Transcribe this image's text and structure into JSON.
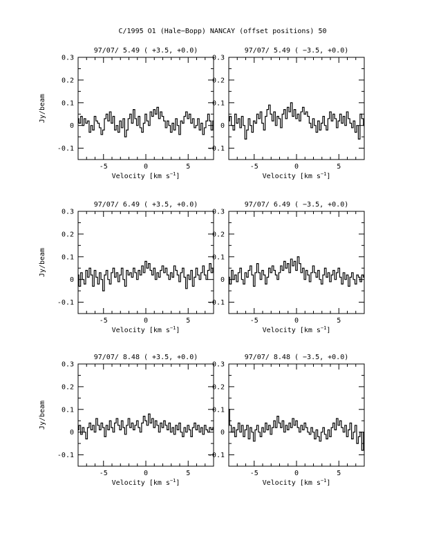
{
  "page_title": "C/1995 O1 (Hale−Bopp)   NANCAY     (offset positions)   50",
  "chart_data": [
    {
      "type": "line",
      "title": "97/07/ 5.49  ( +3.5, +0.0)",
      "xlabel": "Velocity [km s",
      "xlabel_sup": "−1",
      "xlabel_close": "]",
      "ylabel": "Jy/beam",
      "xlim": [
        -8,
        8
      ],
      "ylim": [
        -0.15,
        0.3
      ],
      "xticks": [
        "-5",
        "0",
        "5"
      ],
      "yticks": [
        "-0.1",
        "0",
        "0.1",
        "0.2",
        "0.3"
      ],
      "x_start": -8,
      "x_step": 0.2,
      "values": [
        0.03,
        0.01,
        0.04,
        0.0,
        0.03,
        0.01,
        0.02,
        -0.03,
        0.0,
        -0.02,
        0.04,
        0.02,
        0.01,
        -0.01,
        -0.04,
        -0.02,
        0.03,
        0.05,
        0.02,
        0.06,
        0.01,
        0.04,
        -0.02,
        0.0,
        -0.03,
        0.02,
        -0.01,
        0.03,
        -0.05,
        -0.02,
        0.03,
        0.05,
        0.01,
        0.07,
        0.03,
        0.0,
        0.04,
        -0.01,
        -0.03,
        0.01,
        0.05,
        0.02,
        0.0,
        0.06,
        0.04,
        0.07,
        0.05,
        0.08,
        0.03,
        0.06,
        0.04,
        0.02,
        -0.01,
        0.02,
        0.0,
        -0.03,
        0.01,
        -0.02,
        0.03,
        0.0,
        -0.04,
        0.02,
        0.01,
        0.04,
        0.06,
        0.03,
        0.05,
        0.01,
        0.03,
        -0.01,
        0.0,
        0.03,
        -0.02,
        0.01,
        -0.04,
        -0.01,
        0.02,
        0.05,
        0.02,
        -0.02,
        0.02
      ]
    },
    {
      "type": "line",
      "title": "97/07/ 5.49  ( −3.5, +0.0)",
      "xlabel": "Velocity [km s",
      "xlabel_sup": "−1",
      "xlabel_close": "]",
      "ylabel": "",
      "xlim": [
        -8,
        8
      ],
      "ylim": [
        -0.15,
        0.3
      ],
      "xticks": [
        "-5",
        "0",
        "5"
      ],
      "yticks": [
        "-0.1",
        "0",
        "0.1",
        "0.2",
        "0.3"
      ],
      "x_start": -8,
      "x_step": 0.2,
      "values": [
        0.02,
        0.04,
        0.0,
        -0.02,
        0.05,
        0.01,
        0.03,
        -0.01,
        0.04,
        0.0,
        -0.06,
        -0.02,
        0.03,
        0.0,
        -0.03,
        0.02,
        0.01,
        0.05,
        0.03,
        0.06,
        0.01,
        -0.02,
        0.04,
        0.07,
        0.09,
        0.05,
        0.02,
        0.06,
        0.0,
        0.04,
        0.03,
        -0.01,
        0.05,
        0.07,
        0.03,
        0.08,
        0.06,
        0.1,
        0.04,
        0.07,
        0.03,
        0.05,
        0.02,
        0.06,
        0.08,
        0.05,
        0.06,
        0.04,
        0.01,
        -0.01,
        0.03,
        0.0,
        -0.03,
        0.02,
        -0.02,
        0.01,
        0.04,
        0.0,
        -0.02,
        0.03,
        0.06,
        0.02,
        0.05,
        0.03,
        -0.01,
        0.02,
        0.05,
        0.01,
        0.04,
        0.0,
        0.06,
        0.03,
        0.01,
        -0.01,
        0.02,
        -0.03,
        0.0,
        -0.06,
        0.05,
        0.03,
        0.0
      ]
    },
    {
      "type": "line",
      "title": "97/07/ 6.49  ( +3.5, +0.0)",
      "xlabel": "Velocity [km s",
      "xlabel_sup": "−1",
      "xlabel_close": "]",
      "ylabel": "Jy/beam",
      "xlim": [
        -8,
        8
      ],
      "ylim": [
        -0.15,
        0.3
      ],
      "xticks": [
        "-5",
        "0",
        "5"
      ],
      "yticks": [
        "-0.1",
        "0",
        "0.1",
        "0.2",
        "0.3"
      ],
      "x_start": -8,
      "x_step": 0.2,
      "values": [
        0.02,
        -0.03,
        0.03,
        0.0,
        -0.02,
        0.04,
        0.01,
        0.05,
        0.02,
        -0.03,
        0.04,
        0.01,
        -0.02,
        0.03,
        0.0,
        -0.05,
        0.02,
        0.04,
        0.0,
        -0.02,
        0.03,
        0.05,
        0.01,
        0.03,
        -0.01,
        0.02,
        0.05,
        0.0,
        -0.03,
        0.04,
        0.02,
        0.03,
        0.01,
        0.05,
        0.03,
        0.0,
        0.04,
        0.02,
        0.06,
        0.03,
        0.08,
        0.05,
        0.07,
        0.04,
        0.02,
        0.05,
        0.0,
        0.03,
        0.01,
        0.04,
        0.06,
        0.03,
        0.05,
        0.02,
        0.0,
        0.03,
        0.01,
        0.06,
        0.04,
        0.02,
        -0.01,
        0.03,
        0.05,
        0.01,
        -0.04,
        0.02,
        0.0,
        0.04,
        -0.03,
        0.01,
        0.05,
        0.02,
        0.0,
        0.03,
        0.06,
        0.02,
        0.0,
        0.04,
        0.07,
        0.03,
        0.05
      ]
    },
    {
      "type": "line",
      "title": "97/07/ 6.49  ( −3.5, +0.0)",
      "xlabel": "Velocity [km s",
      "xlabel_sup": "−1",
      "xlabel_close": "]",
      "ylabel": "",
      "xlim": [
        -8,
        8
      ],
      "ylim": [
        -0.15,
        0.3
      ],
      "xticks": [
        "-5",
        "0",
        "5"
      ],
      "yticks": [
        "-0.1",
        "0",
        "0.1",
        "0.2",
        "0.3"
      ],
      "x_start": -8,
      "x_step": 0.2,
      "values": [
        0.01,
        -0.02,
        0.04,
        0.0,
        0.02,
        -0.01,
        0.03,
        0.05,
        0.0,
        -0.02,
        0.03,
        0.01,
        0.04,
        0.06,
        0.02,
        -0.03,
        0.03,
        0.07,
        0.03,
        0.0,
        0.04,
        0.02,
        -0.02,
        0.01,
        0.05,
        0.03,
        0.06,
        0.04,
        0.02,
        0.0,
        0.03,
        0.06,
        0.04,
        0.08,
        0.05,
        0.07,
        0.03,
        0.09,
        0.06,
        0.08,
        0.04,
        0.1,
        0.07,
        0.03,
        0.05,
        0.0,
        0.04,
        0.02,
        -0.01,
        0.03,
        0.06,
        0.03,
        0.01,
        0.04,
        0.0,
        -0.02,
        0.02,
        0.05,
        0.01,
        0.03,
        -0.01,
        0.02,
        0.04,
        0.0,
        0.03,
        0.05,
        0.01,
        -0.02,
        0.03,
        0.0,
        0.02,
        -0.03,
        0.01,
        0.03,
        0.0,
        -0.02,
        0.02,
        0.01,
        -0.01,
        0.02,
        0.01
      ]
    },
    {
      "type": "line",
      "title": "97/07/ 8.48  ( +3.5, +0.0)",
      "xlabel": "Velocity [km s",
      "xlabel_sup": "−1",
      "xlabel_close": "]",
      "ylabel": "Jy/beam",
      "xlim": [
        -8,
        8
      ],
      "ylim": [
        -0.15,
        0.3
      ],
      "xticks": [
        "-5",
        "0",
        "5"
      ],
      "yticks": [
        "-0.1",
        "0",
        "0.1",
        "0.2",
        "0.3"
      ],
      "x_start": -8,
      "x_step": 0.2,
      "values": [
        0.01,
        0.03,
        -0.01,
        0.02,
        0.0,
        -0.03,
        0.02,
        0.04,
        0.01,
        0.03,
        0.0,
        0.06,
        0.03,
        0.01,
        0.04,
        0.02,
        -0.02,
        0.03,
        0.01,
        0.05,
        0.02,
        0.0,
        0.04,
        0.06,
        0.03,
        0.01,
        0.05,
        0.02,
        -0.01,
        0.03,
        0.06,
        0.02,
        0.04,
        0.01,
        0.03,
        0.05,
        0.02,
        0.0,
        0.04,
        0.07,
        0.05,
        0.03,
        0.08,
        0.04,
        0.06,
        0.02,
        0.05,
        0.03,
        0.0,
        0.04,
        0.02,
        0.05,
        0.03,
        0.01,
        0.04,
        0.0,
        0.02,
        -0.01,
        0.03,
        0.01,
        0.04,
        0.0,
        -0.02,
        0.02,
        0.0,
        0.03,
        0.01,
        -0.02,
        0.02,
        0.04,
        0.01,
        0.03,
        0.0,
        0.02,
        -0.01,
        0.03,
        0.01,
        0.0,
        0.02,
        0.01,
        0.02
      ]
    },
    {
      "type": "line",
      "title": "97/07/ 8.48  ( −3.5, +0.0)",
      "xlabel": "Velocity [km s",
      "xlabel_sup": "−1",
      "xlabel_close": "]",
      "ylabel": "",
      "xlim": [
        -8,
        8
      ],
      "ylim": [
        -0.15,
        0.3
      ],
      "xticks": [
        "-5",
        "0",
        "5"
      ],
      "yticks": [
        "-0.1",
        "0",
        "0.1",
        "0.2",
        "0.3"
      ],
      "x_start": -8,
      "x_step": 0.2,
      "values": [
        0.1,
        0.03,
        0.0,
        0.02,
        -0.02,
        0.01,
        0.04,
        0.0,
        0.03,
        -0.02,
        0.01,
        0.03,
        -0.03,
        0.02,
        0.0,
        -0.04,
        0.01,
        0.03,
        0.0,
        -0.02,
        0.02,
        0.0,
        0.04,
        0.01,
        0.03,
        -0.01,
        0.02,
        0.05,
        0.02,
        0.07,
        0.04,
        0.02,
        0.05,
        0.0,
        0.03,
        0.01,
        0.04,
        0.02,
        0.06,
        0.03,
        0.05,
        0.02,
        0.0,
        0.03,
        0.01,
        0.04,
        0.02,
        0.0,
        -0.01,
        0.02,
        0.0,
        -0.03,
        0.01,
        -0.02,
        -0.04,
        0.0,
        0.02,
        -0.01,
        -0.03,
        0.01,
        -0.02,
        0.02,
        0.04,
        0.01,
        0.06,
        0.03,
        0.05,
        0.02,
        0.0,
        0.03,
        -0.02,
        0.01,
        0.04,
        -0.03,
        0.0,
        0.03,
        -0.05,
        -0.02,
        0.0,
        -0.08,
        0.0
      ]
    }
  ]
}
